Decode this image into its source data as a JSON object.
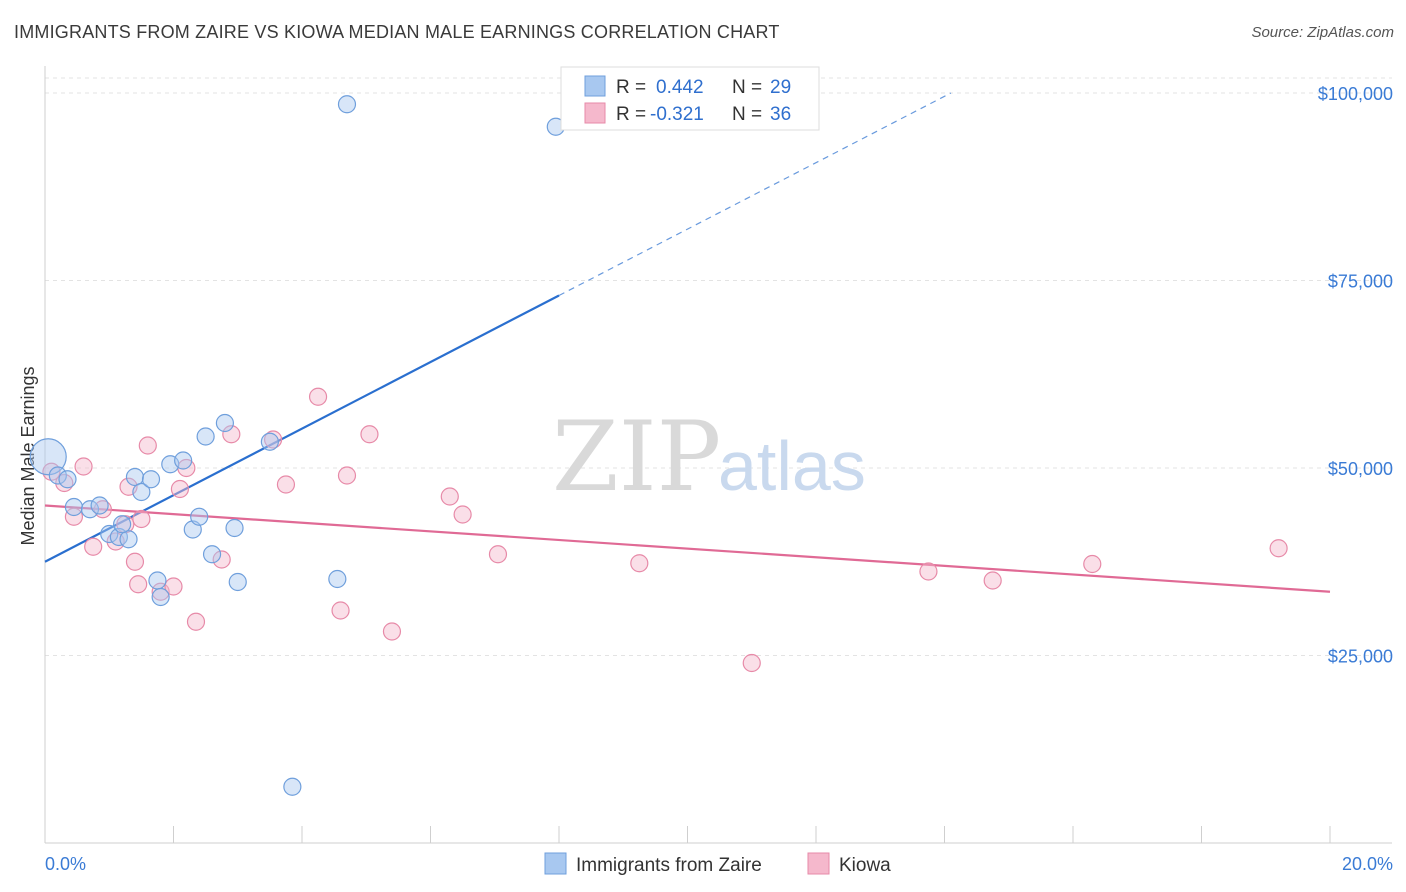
{
  "header": {
    "title": "IMMIGRANTS FROM ZAIRE VS KIOWA MEDIAN MALE EARNINGS CORRELATION CHART",
    "source": "Source: ZipAtlas.com"
  },
  "watermark": {
    "zip": "ZIP",
    "atlas": "atlas"
  },
  "legend": {
    "r_label": "R =",
    "n_label": "N =",
    "series": [
      {
        "r": "0.442",
        "n": "29"
      },
      {
        "r": "-0.321",
        "n": "36"
      }
    ]
  },
  "colors": {
    "zaire_fill": "#a8c8f0",
    "zaire_stroke": "#6f9fdc",
    "zaire_line": "#2a6fcf",
    "kiowa_fill": "#f5b8cc",
    "kiowa_stroke": "#e78aa8",
    "kiowa_line": "#e06a95"
  },
  "chart_data": {
    "type": "scatter",
    "title": "IMMIGRANTS FROM ZAIRE VS KIOWA MEDIAN MALE EARNINGS CORRELATION CHART",
    "xlabel": "",
    "ylabel": "Median Male Earnings",
    "xlim": [
      0,
      20
    ],
    "ylim": [
      0,
      102000
    ],
    "x_tick_labels": [
      "0.0%",
      "20.0%"
    ],
    "y_ticks": [
      25000,
      50000,
      75000,
      100000
    ],
    "y_tick_labels": [
      "$25,000",
      "$50,000",
      "$75,000",
      "$100,000"
    ],
    "series": [
      {
        "name": "Immigrants from Zaire",
        "points": [
          {
            "x": 0.05,
            "y": 51500,
            "big": true
          },
          {
            "x": 0.2,
            "y": 49000
          },
          {
            "x": 0.35,
            "y": 48500
          },
          {
            "x": 0.45,
            "y": 44800
          },
          {
            "x": 0.7,
            "y": 44500
          },
          {
            "x": 0.85,
            "y": 45000
          },
          {
            "x": 1.0,
            "y": 41200
          },
          {
            "x": 1.15,
            "y": 40800
          },
          {
            "x": 1.3,
            "y": 40500
          },
          {
            "x": 1.4,
            "y": 48800
          },
          {
            "x": 1.5,
            "y": 46800
          },
          {
            "x": 1.65,
            "y": 48500
          },
          {
            "x": 1.75,
            "y": 35000
          },
          {
            "x": 1.8,
            "y": 32800
          },
          {
            "x": 1.95,
            "y": 50500
          },
          {
            "x": 2.15,
            "y": 51000
          },
          {
            "x": 2.3,
            "y": 41800
          },
          {
            "x": 2.4,
            "y": 43500
          },
          {
            "x": 2.5,
            "y": 54200
          },
          {
            "x": 2.6,
            "y": 38500
          },
          {
            "x": 2.8,
            "y": 56000
          },
          {
            "x": 2.95,
            "y": 42000
          },
          {
            "x": 3.0,
            "y": 34800
          },
          {
            "x": 3.5,
            "y": 53500
          },
          {
            "x": 3.85,
            "y": 7500
          },
          {
            "x": 4.55,
            "y": 35200
          },
          {
            "x": 4.7,
            "y": 98500
          },
          {
            "x": 7.95,
            "y": 95500
          },
          {
            "x": 1.2,
            "y": 42500
          }
        ],
        "trend": {
          "x0": 0,
          "y0": 37500,
          "x1": 8.0,
          "y1": 73000,
          "dash_to_x": 14.1,
          "dash_to_y": 100000
        }
      },
      {
        "name": "Kiowa",
        "points": [
          {
            "x": 0.1,
            "y": 49500
          },
          {
            "x": 0.3,
            "y": 48000
          },
          {
            "x": 0.45,
            "y": 43500
          },
          {
            "x": 0.6,
            "y": 50200
          },
          {
            "x": 0.75,
            "y": 39500
          },
          {
            "x": 0.9,
            "y": 44500
          },
          {
            "x": 1.1,
            "y": 40200
          },
          {
            "x": 1.25,
            "y": 42500
          },
          {
            "x": 1.3,
            "y": 47500
          },
          {
            "x": 1.4,
            "y": 37500
          },
          {
            "x": 1.45,
            "y": 34500
          },
          {
            "x": 1.5,
            "y": 43200
          },
          {
            "x": 1.6,
            "y": 53000
          },
          {
            "x": 1.8,
            "y": 33500
          },
          {
            "x": 2.0,
            "y": 34200
          },
          {
            "x": 2.1,
            "y": 47200
          },
          {
            "x": 2.2,
            "y": 50000
          },
          {
            "x": 2.35,
            "y": 29500
          },
          {
            "x": 2.75,
            "y": 37800
          },
          {
            "x": 2.9,
            "y": 54500
          },
          {
            "x": 3.55,
            "y": 53800
          },
          {
            "x": 3.75,
            "y": 47800
          },
          {
            "x": 4.25,
            "y": 59500
          },
          {
            "x": 4.6,
            "y": 31000
          },
          {
            "x": 4.7,
            "y": 49000
          },
          {
            "x": 5.05,
            "y": 54500
          },
          {
            "x": 5.4,
            "y": 28200
          },
          {
            "x": 6.3,
            "y": 46200
          },
          {
            "x": 6.5,
            "y": 43800
          },
          {
            "x": 7.05,
            "y": 38500
          },
          {
            "x": 9.25,
            "y": 37300
          },
          {
            "x": 11.0,
            "y": 24000
          },
          {
            "x": 13.75,
            "y": 36200
          },
          {
            "x": 14.75,
            "y": 35000
          },
          {
            "x": 16.3,
            "y": 37200
          },
          {
            "x": 19.2,
            "y": 39300
          }
        ],
        "trend": {
          "x0": 0,
          "y0": 45000,
          "x1": 20,
          "y1": 33500
        }
      }
    ]
  },
  "bottom_legend": {
    "items": [
      "Immigrants from Zaire",
      "Kiowa"
    ]
  }
}
